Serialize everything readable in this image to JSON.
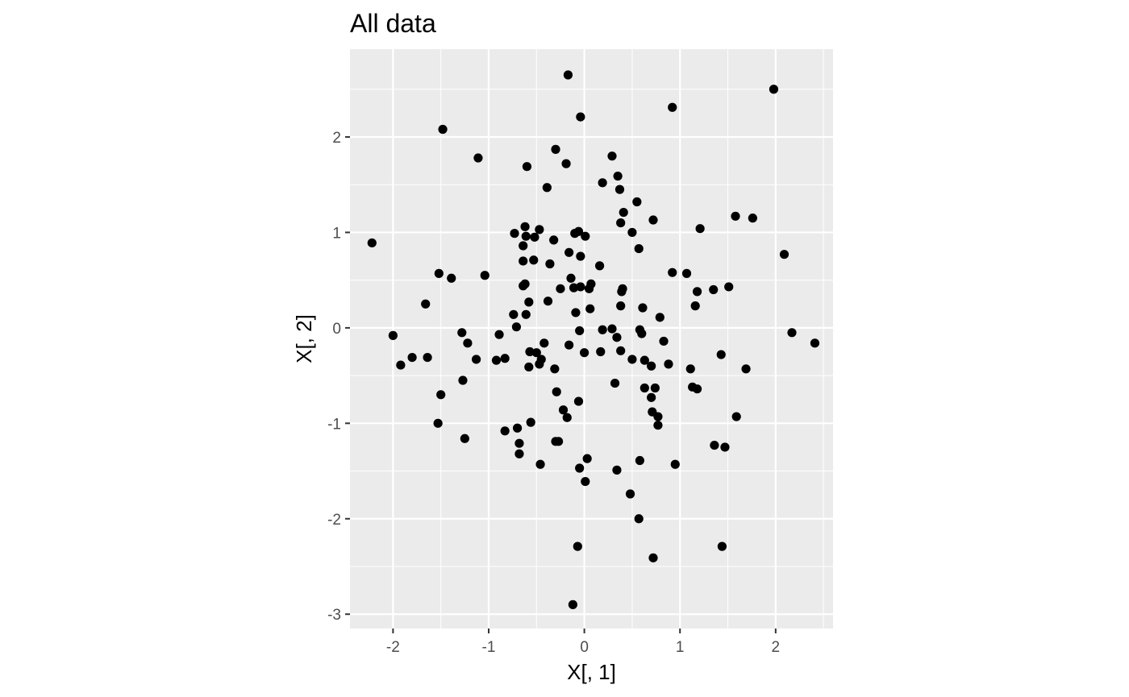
{
  "chart_data": {
    "type": "scatter",
    "title": "All data",
    "xlabel": "X[, 1]",
    "ylabel": "X[, 2]",
    "xlim": [
      -2.45,
      2.6
    ],
    "ylim": [
      -3.15,
      2.92
    ],
    "grid": true,
    "legend": "none",
    "colors": {
      "panel": "#ebebeb",
      "grid": "#ffffff",
      "point": "#000000",
      "tick": "#333333",
      "tick_label": "#4d4d4d"
    },
    "x_ticks": [
      -2,
      -1,
      0,
      1,
      2
    ],
    "x_tick_labels": [
      "-2",
      "-1",
      "0",
      "1",
      "2"
    ],
    "y_ticks": [
      -3,
      -2,
      -1,
      0,
      1,
      2
    ],
    "y_tick_labels": [
      "-3",
      "-2",
      "-1",
      "0",
      "1",
      "2"
    ],
    "points": [
      [
        -0.17,
        2.65
      ],
      [
        1.98,
        2.5
      ],
      [
        0.92,
        2.31
      ],
      [
        -0.04,
        2.21
      ],
      [
        -1.48,
        2.08
      ],
      [
        -1.11,
        1.78
      ],
      [
        -0.3,
        1.87
      ],
      [
        -0.19,
        1.72
      ],
      [
        -0.6,
        1.69
      ],
      [
        0.29,
        1.8
      ],
      [
        0.35,
        1.59
      ],
      [
        0.19,
        1.52
      ],
      [
        0.37,
        1.45
      ],
      [
        -0.39,
        1.47
      ],
      [
        0.55,
        1.32
      ],
      [
        0.41,
        1.21
      ],
      [
        0.38,
        1.1
      ],
      [
        0.72,
        1.13
      ],
      [
        1.58,
        1.17
      ],
      [
        1.76,
        1.15
      ],
      [
        -2.22,
        0.89
      ],
      [
        -0.62,
        1.06
      ],
      [
        -0.47,
        1.03
      ],
      [
        -0.73,
        0.99
      ],
      [
        -0.61,
        0.96
      ],
      [
        -0.52,
        0.95
      ],
      [
        -0.1,
        0.99
      ],
      [
        -0.06,
        1.01
      ],
      [
        0.01,
        0.96
      ],
      [
        0.5,
        1.0
      ],
      [
        1.21,
        1.04
      ],
      [
        -0.32,
        0.92
      ],
      [
        -0.64,
        0.86
      ],
      [
        -0.16,
        0.79
      ],
      [
        -0.04,
        0.75
      ],
      [
        0.57,
        0.83
      ],
      [
        2.09,
        0.77
      ],
      [
        -0.53,
        0.71
      ],
      [
        -0.64,
        0.7
      ],
      [
        -0.36,
        0.67
      ],
      [
        0.16,
        0.65
      ],
      [
        -1.52,
        0.57
      ],
      [
        -1.04,
        0.55
      ],
      [
        -1.39,
        0.52
      ],
      [
        0.92,
        0.58
      ],
      [
        1.07,
        0.57
      ],
      [
        -0.14,
        0.52
      ],
      [
        -0.62,
        0.46
      ],
      [
        -0.64,
        0.44
      ],
      [
        -0.25,
        0.41
      ],
      [
        -0.11,
        0.42
      ],
      [
        -0.04,
        0.43
      ],
      [
        0.07,
        0.46
      ],
      [
        0.05,
        0.41
      ],
      [
        0.4,
        0.41
      ],
      [
        0.39,
        0.38
      ],
      [
        1.18,
        0.38
      ],
      [
        1.35,
        0.4
      ],
      [
        1.51,
        0.43
      ],
      [
        -1.66,
        0.25
      ],
      [
        -0.58,
        0.27
      ],
      [
        -0.38,
        0.28
      ],
      [
        0.38,
        0.23
      ],
      [
        0.61,
        0.21
      ],
      [
        1.16,
        0.23
      ],
      [
        -0.74,
        0.14
      ],
      [
        -0.61,
        0.14
      ],
      [
        -0.09,
        0.16
      ],
      [
        0.06,
        0.2
      ],
      [
        0.79,
        0.11
      ],
      [
        -0.71,
        0.01
      ],
      [
        -0.05,
        -0.03
      ],
      [
        0.19,
        -0.02
      ],
      [
        0.29,
        -0.01
      ],
      [
        0.58,
        -0.02
      ],
      [
        0.6,
        -0.06
      ],
      [
        0.34,
        -0.1
      ],
      [
        -2.0,
        -0.08
      ],
      [
        -1.28,
        -0.05
      ],
      [
        -0.89,
        -0.07
      ],
      [
        2.17,
        -0.05
      ],
      [
        2.41,
        -0.16
      ],
      [
        -1.22,
        -0.16
      ],
      [
        -0.42,
        -0.16
      ],
      [
        -0.16,
        -0.18
      ],
      [
        0.83,
        -0.14
      ],
      [
        -0.57,
        -0.25
      ],
      [
        -0.5,
        -0.26
      ],
      [
        0.0,
        -0.26
      ],
      [
        0.17,
        -0.25
      ],
      [
        0.38,
        -0.24
      ],
      [
        1.43,
        -0.28
      ],
      [
        -1.8,
        -0.31
      ],
      [
        -1.64,
        -0.31
      ],
      [
        -1.13,
        -0.33
      ],
      [
        -0.92,
        -0.34
      ],
      [
        -0.83,
        -0.32
      ],
      [
        -0.45,
        -0.33
      ],
      [
        -0.47,
        -0.38
      ],
      [
        0.5,
        -0.33
      ],
      [
        0.63,
        -0.34
      ],
      [
        -1.92,
        -0.39
      ],
      [
        -0.58,
        -0.41
      ],
      [
        -0.31,
        -0.43
      ],
      [
        0.7,
        -0.4
      ],
      [
        0.88,
        -0.38
      ],
      [
        1.11,
        -0.43
      ],
      [
        1.69,
        -0.43
      ],
      [
        -1.27,
        -0.55
      ],
      [
        0.32,
        -0.58
      ],
      [
        0.63,
        -0.63
      ],
      [
        0.74,
        -0.63
      ],
      [
        1.13,
        -0.62
      ],
      [
        1.18,
        -0.64
      ],
      [
        -1.5,
        -0.7
      ],
      [
        -0.29,
        -0.67
      ],
      [
        0.7,
        -0.73
      ],
      [
        -0.06,
        -0.77
      ],
      [
        -0.22,
        -0.86
      ],
      [
        0.71,
        -0.88
      ],
      [
        0.77,
        -0.93
      ],
      [
        -0.18,
        -0.94
      ],
      [
        1.59,
        -0.93
      ],
      [
        -1.53,
        -1.0
      ],
      [
        -0.56,
        -0.99
      ],
      [
        0.77,
        -1.02
      ],
      [
        -0.83,
        -1.08
      ],
      [
        -0.7,
        -1.05
      ],
      [
        -1.25,
        -1.16
      ],
      [
        -0.3,
        -1.19
      ],
      [
        -0.27,
        -1.19
      ],
      [
        -0.68,
        -1.21
      ],
      [
        1.36,
        -1.23
      ],
      [
        1.47,
        -1.25
      ],
      [
        -0.68,
        -1.32
      ],
      [
        0.03,
        -1.37
      ],
      [
        0.58,
        -1.39
      ],
      [
        -0.46,
        -1.43
      ],
      [
        0.95,
        -1.43
      ],
      [
        -0.05,
        -1.47
      ],
      [
        0.34,
        -1.49
      ],
      [
        0.01,
        -1.61
      ],
      [
        0.48,
        -1.74
      ],
      [
        0.57,
        -2.0
      ],
      [
        -0.07,
        -2.29
      ],
      [
        1.44,
        -2.29
      ],
      [
        0.72,
        -2.41
      ],
      [
        -0.12,
        -2.9
      ]
    ]
  }
}
